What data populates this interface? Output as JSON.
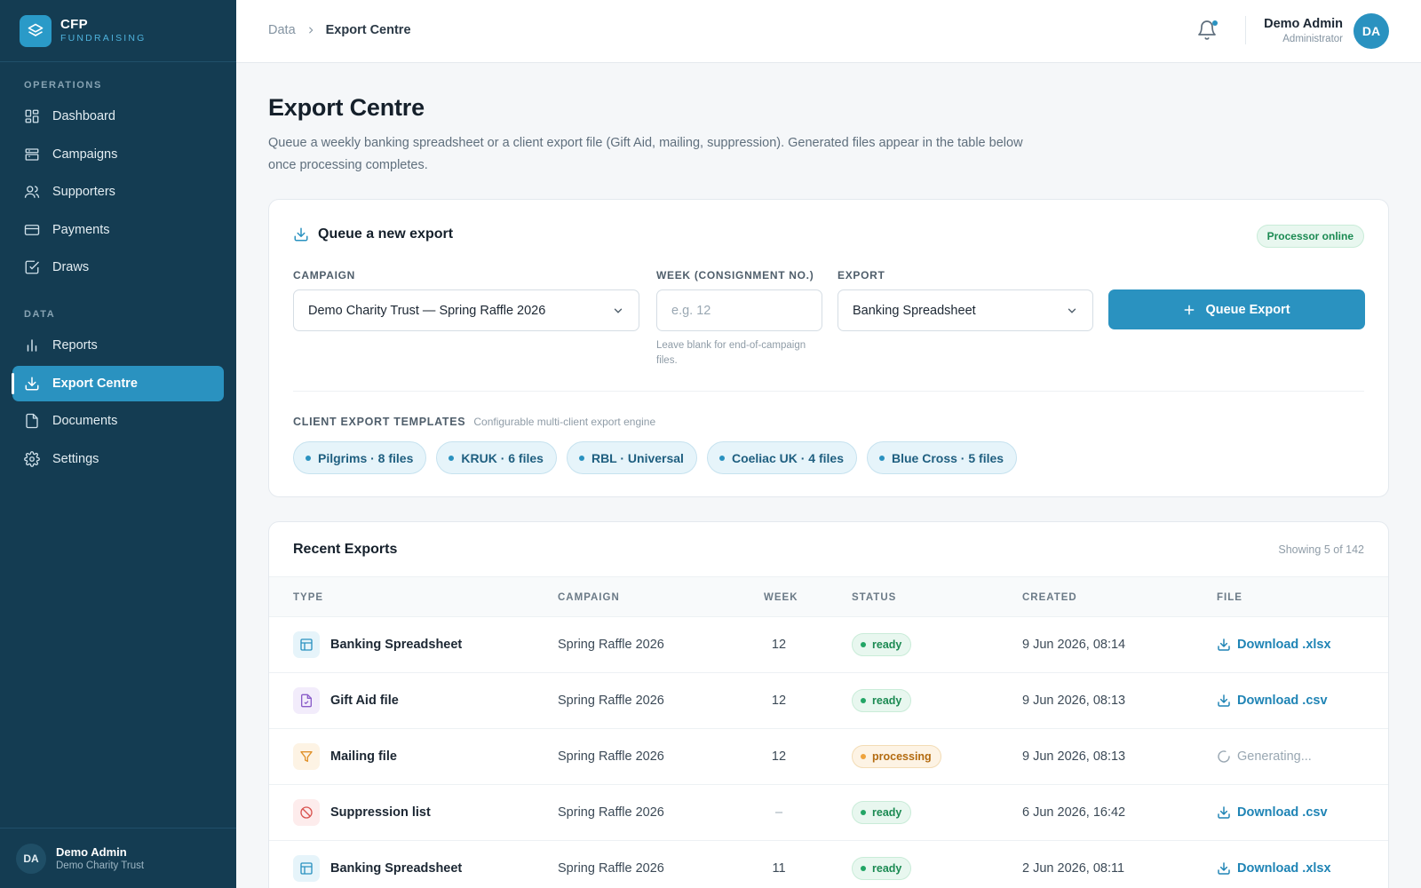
{
  "brand": {
    "name": "CFP",
    "sub": "FUNDRAISING"
  },
  "sidebar": {
    "sections": [
      "OPERATIONS",
      "DATA"
    ],
    "ops_items": [
      {
        "label": "Dashboard",
        "icon": "dashboard-icon"
      },
      {
        "label": "Campaigns",
        "icon": "campaigns-icon"
      },
      {
        "label": "Supporters",
        "icon": "users-icon"
      },
      {
        "label": "Payments",
        "icon": "credit-card-icon"
      },
      {
        "label": "Draws",
        "icon": "checkbox-icon"
      }
    ],
    "data_items": [
      {
        "label": "Reports",
        "icon": "bar-chart-icon"
      },
      {
        "label": "Export Centre",
        "icon": "download-icon",
        "active": true
      },
      {
        "label": "Documents",
        "icon": "document-icon"
      },
      {
        "label": "Settings",
        "icon": "gear-icon"
      }
    ],
    "user": {
      "initials": "DA",
      "name": "Demo Admin",
      "org": "Demo Charity Trust"
    }
  },
  "topbar": {
    "breadcrumb": [
      "Data",
      "Export Centre"
    ],
    "user": {
      "name": "Demo Admin",
      "role": "Administrator",
      "initials": "DA"
    }
  },
  "page": {
    "title": "Export Centre",
    "description": "Queue a weekly banking spreadsheet or a client export file (Gift Aid, mailing, suppression). Generated files appear in the table below once processing completes."
  },
  "queue": {
    "title": "Queue a new export",
    "status_badge": "Processor online",
    "campaign_label": "CAMPAIGN",
    "campaign_value": "Demo Charity Trust — Spring Raffle 2026",
    "week_label": "WEEK (CONSIGNMENT NO.)",
    "week_placeholder": "e.g. 12",
    "week_hint": "Leave blank for end-of-campaign files.",
    "export_label": "EXPORT",
    "export_value": "Banking Spreadsheet",
    "button_label": "Queue Export",
    "templates_label": "CLIENT EXPORT TEMPLATES",
    "templates_sub": "Configurable multi-client export engine",
    "templates": [
      "Pilgrims · 8 files",
      "KRUK · 6 files",
      "RBL · Universal",
      "Coeliac UK · 4 files",
      "Blue Cross · 5 files"
    ]
  },
  "recent": {
    "title": "Recent Exports",
    "count": "Showing 5 of 142",
    "columns": [
      "TYPE",
      "CAMPAIGN",
      "WEEK",
      "STATUS",
      "CREATED",
      "FILE"
    ],
    "rows": [
      {
        "type": "Banking Spreadsheet",
        "campaign": "Spring Raffle 2026",
        "week": "12",
        "status": "ready",
        "created": "9 Jun 2026, 08:14",
        "file": "Download .xlsx"
      },
      {
        "type": "Gift Aid file",
        "campaign": "Spring Raffle 2026",
        "week": "12",
        "status": "ready",
        "created": "9 Jun 2026, 08:13",
        "file": "Download .csv"
      },
      {
        "type": "Mailing file",
        "campaign": "Spring Raffle 2026",
        "week": "12",
        "status": "processing",
        "created": "9 Jun 2026, 08:13",
        "file": "Generating..."
      },
      {
        "type": "Suppression list",
        "campaign": "Spring Raffle 2026",
        "week": "–",
        "status": "ready",
        "created": "6 Jun 2026, 16:42",
        "file": "Download .csv"
      },
      {
        "type": "Banking Spreadsheet",
        "campaign": "Spring Raffle 2026",
        "week": "11",
        "status": "ready",
        "created": "2 Jun 2026, 08:11",
        "file": "Download .xlsx"
      }
    ]
  },
  "colors": {
    "sidebar": "#143c52",
    "accent": "#2a92c0",
    "ready": "#1b8a52",
    "processing": "#b36b10"
  }
}
